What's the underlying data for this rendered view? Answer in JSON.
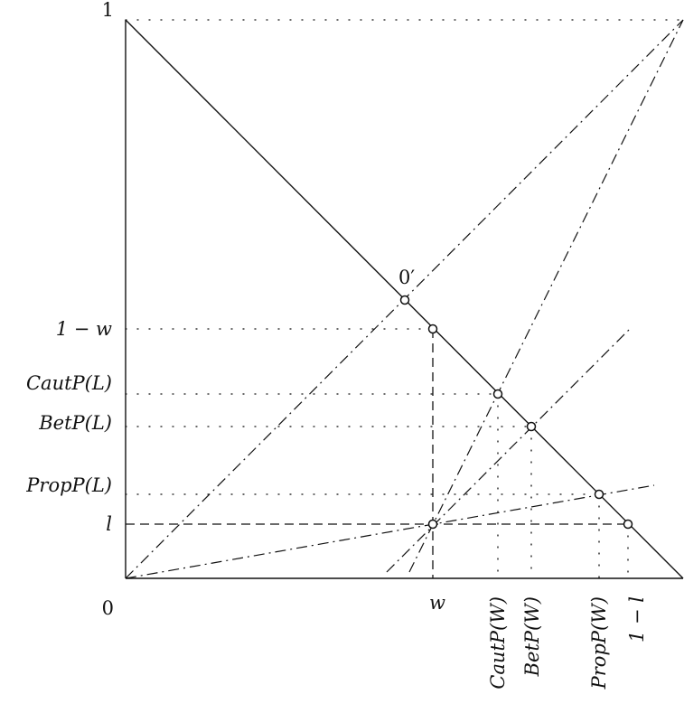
{
  "labels": {
    "one": "1",
    "zero": "0",
    "one_minus_w": "1 − w",
    "caut_l": "CautP(L)",
    "bet_l": "BetP(L)",
    "prop_l": "PropP(L)",
    "l": "l",
    "origin_prime": "0′",
    "w": "w",
    "caut_w": "CautP(W)",
    "bet_w": "BetP(W)",
    "prop_w": "PropP(W)",
    "one_minus_l": "1 − l"
  }
}
